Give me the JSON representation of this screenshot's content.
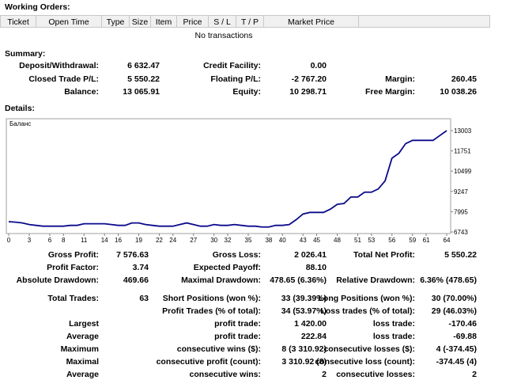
{
  "working_orders": {
    "title": "Working Orders:",
    "columns": [
      "Ticket",
      "Open Time",
      "Type",
      "Size",
      "Item",
      "Price",
      "S / L",
      "T / P",
      "Market Price"
    ],
    "empty": "No transactions"
  },
  "summary": {
    "title": "Summary:",
    "rows": [
      [
        {
          "label": "Deposit/Withdrawal:",
          "value": "6 632.47"
        },
        {
          "label": "Credit Facility:",
          "value": "0.00"
        },
        null
      ],
      [
        {
          "label": "Closed Trade P/L:",
          "value": "5 550.22"
        },
        {
          "label": "Floating P/L:",
          "value": "-2 767.20"
        },
        {
          "label": "Margin:",
          "value": "260.45"
        }
      ],
      [
        {
          "label": "Balance:",
          "value": "13 065.91"
        },
        {
          "label": "Equity:",
          "value": "10 298.71"
        },
        {
          "label": "Free Margin:",
          "value": "10 038.26"
        }
      ]
    ]
  },
  "details": {
    "title": "Details:",
    "chart": {
      "type": "line",
      "title": "Баланс",
      "color": "#0a0a8c",
      "x": [
        0,
        1,
        2,
        3,
        4,
        5,
        6,
        7,
        8,
        9,
        10,
        11,
        12,
        13,
        14,
        15,
        16,
        17,
        18,
        19,
        20,
        21,
        22,
        23,
        24,
        25,
        26,
        27,
        28,
        29,
        30,
        31,
        32,
        33,
        34,
        35,
        36,
        37,
        38,
        39,
        40,
        41,
        42,
        43,
        44,
        45,
        46,
        47,
        48,
        49,
        50,
        51,
        52,
        53,
        54,
        55,
        56,
        57,
        58,
        59,
        60,
        61,
        62,
        63,
        64
      ],
      "values": [
        7380,
        7350,
        7300,
        7200,
        7150,
        7100,
        7100,
        7100,
        7100,
        7150,
        7150,
        7250,
        7250,
        7250,
        7250,
        7200,
        7150,
        7150,
        7300,
        7300,
        7200,
        7150,
        7100,
        7100,
        7100,
        7200,
        7300,
        7200,
        7100,
        7100,
        7200,
        7150,
        7150,
        7200,
        7150,
        7100,
        7100,
        7050,
        7050,
        7150,
        7150,
        7200,
        7500,
        7850,
        7950,
        7950,
        7950,
        8150,
        8450,
        8500,
        8900,
        8900,
        9200,
        9200,
        9400,
        9900,
        11300,
        11600,
        12200,
        12400,
        12400,
        12400,
        12400,
        12700,
        13003
      ],
      "xlim": [
        0,
        64
      ],
      "xticks": [
        0,
        3,
        6,
        8,
        11,
        14,
        16,
        19,
        22,
        24,
        27,
        30,
        32,
        35,
        38,
        40,
        43,
        45,
        48,
        51,
        53,
        56,
        59,
        61,
        64
      ],
      "ylim": [
        6645,
        13736
      ],
      "yticks": [
        6743,
        7995,
        9247,
        10499,
        11751,
        13003
      ]
    },
    "rows": [
      [
        {
          "label": "Gross Profit:",
          "value": "7 576.63"
        },
        {
          "label": "Gross Loss:",
          "value": "2 026.41"
        },
        {
          "label": "Total Net Profit:",
          "value": "5 550.22"
        }
      ],
      [
        {
          "label": "Profit Factor:",
          "value": "3.74"
        },
        {
          "label": "Expected Payoff:",
          "value": "88.10"
        },
        null
      ],
      [
        {
          "label": "Absolute Drawdown:",
          "value": "469.66"
        },
        {
          "label": "Maximal Drawdown:",
          "value": "478.65 (6.36%)"
        },
        {
          "label": "Relative Drawdown:",
          "value": "6.36% (478.65)"
        }
      ],
      [
        {
          "label": "Total Trades:",
          "value": "63"
        },
        {
          "label": "Short Positions (won %):",
          "value": "33 (39.39%)"
        },
        {
          "label": "Long Positions (won %):",
          "value": "30 (70.00%)"
        }
      ],
      [
        null,
        {
          "label": "Profit Trades (% of total):",
          "value": "34 (53.97%)"
        },
        {
          "label": "Loss trades (% of total):",
          "value": "29 (46.03%)"
        }
      ],
      [
        {
          "label": "Largest"
        },
        {
          "label": "profit trade:",
          "value": "1 420.00"
        },
        {
          "label": "loss trade:",
          "value": "-170.46"
        }
      ],
      [
        {
          "label": "Average"
        },
        {
          "label": "profit trade:",
          "value": "222.84"
        },
        {
          "label": "loss trade:",
          "value": "-69.88"
        }
      ],
      [
        {
          "label": "Maximum"
        },
        {
          "label": "consecutive wins ($):",
          "value": "8 (3 310.92)"
        },
        {
          "label": "consecutive losses ($):",
          "value": "4 (-374.45)"
        }
      ],
      [
        {
          "label": "Maximal"
        },
        {
          "label": "consecutive profit (count):",
          "value": "3 310.92 (8)"
        },
        {
          "label": "consecutive loss (count):",
          "value": "-374.45 (4)"
        }
      ],
      [
        {
          "label": "Average"
        },
        {
          "label": "consecutive wins:",
          "value": "2"
        },
        {
          "label": "consecutive losses:",
          "value": "2"
        }
      ]
    ]
  }
}
